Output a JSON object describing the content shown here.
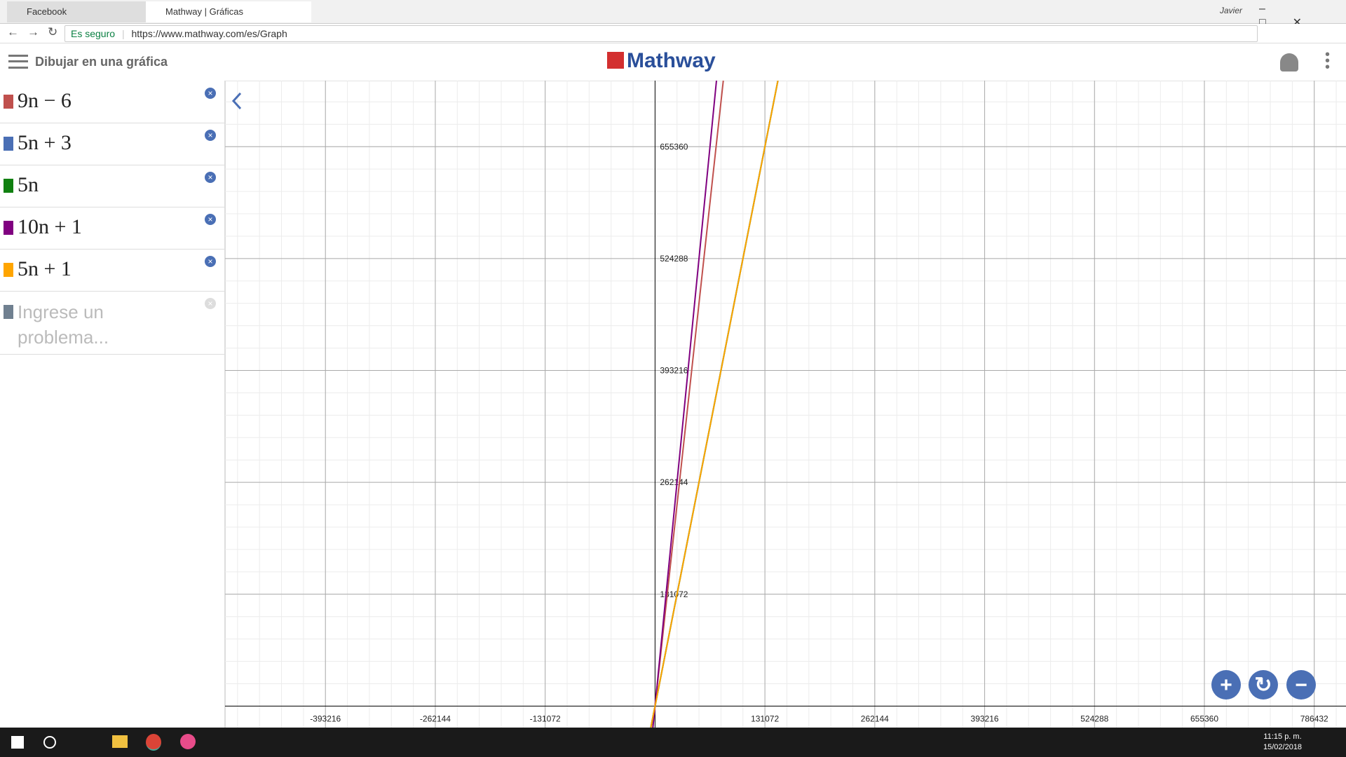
{
  "browser": {
    "tabs": [
      {
        "title": "Facebook"
      },
      {
        "title": "Mathway | Gráficas"
      }
    ],
    "user": "Javier",
    "security": "Es seguro",
    "url": "https://www.mathway.com/es/Graph"
  },
  "header": {
    "title": "Dibujar en una gráfica",
    "logo": "Mathway"
  },
  "sidebar": {
    "placeholder": "Ingrese un problema..."
  },
  "taskbar": {
    "time": "11:15 p. m.",
    "date": "15/02/2018"
  },
  "chart_data": {
    "type": "function-plot",
    "series": [
      {
        "name": "9n − 6",
        "color": "#c0504d"
      },
      {
        "name": "5n + 3",
        "color": "#4a6fb5"
      },
      {
        "name": "5n",
        "color": "#108010"
      },
      {
        "name": "10n + 1",
        "color": "#800080"
      },
      {
        "name": "5n + 1",
        "color": "#ffa500"
      }
    ],
    "xlim": [
      -513000,
      824300
    ],
    "ylim": [
      -25130,
      732760
    ],
    "xticks": [
      -393216,
      -262144,
      -131072,
      131072,
      262144,
      393216,
      524288,
      655360,
      786432
    ],
    "yticks": [
      131072,
      262144,
      393216,
      524288,
      655360
    ],
    "grid": true
  }
}
